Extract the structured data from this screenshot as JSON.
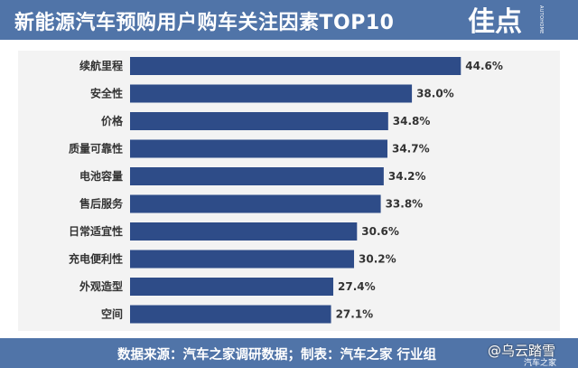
{
  "header": {
    "title": "新能源汽车预购用户购车关注因素TOP10",
    "logo_text": "佳点",
    "logo_side_text": "AUTOHOME"
  },
  "footer": {
    "source": "数据来源：汽车之家调研数据；制表：汽车之家 行业组",
    "watermark": "@乌云踏雪",
    "watermark_sub": "汽车之家"
  },
  "colors": {
    "header_bg": "#5074a8",
    "bar": "#2e4c88",
    "chart_bg": "#f3f3f3",
    "label_text": "#333333"
  },
  "chart_data": {
    "type": "bar",
    "orientation": "horizontal",
    "categories": [
      "续航里程",
      "安全性",
      "价格",
      "质量可靠性",
      "电池容量",
      "售后服务",
      "日常适宜性",
      "充电便利性",
      "外观造型",
      "空间"
    ],
    "values": [
      44.6,
      38.0,
      34.8,
      34.7,
      34.2,
      33.8,
      30.6,
      30.2,
      27.4,
      27.1
    ],
    "value_labels": [
      "44.6%",
      "38.0%",
      "34.8%",
      "34.7%",
      "34.2%",
      "33.8%",
      "30.6%",
      "30.2%",
      "27.4%",
      "27.1%"
    ],
    "title": "新能源汽车预购用户购车关注因素TOP10",
    "xlabel": "",
    "ylabel": "",
    "xlim": [
      0,
      47
    ],
    "grid": false,
    "legend": "none"
  }
}
